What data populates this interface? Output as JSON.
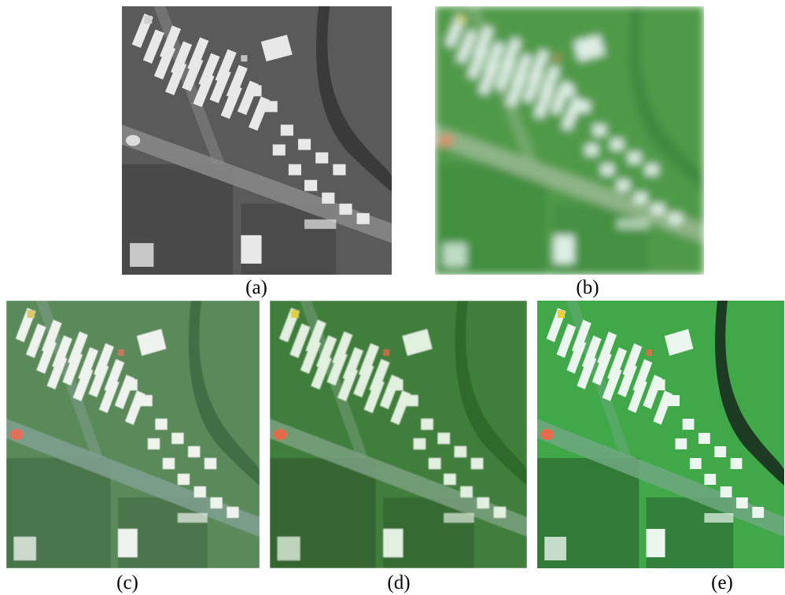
{
  "figure": {
    "panels": [
      {
        "id": "a",
        "caption": "(a)",
        "style": "grayscale",
        "colors": {
          "bg": "#5a5a5a",
          "building": "#e8e8e8",
          "road": "#8a8a8a",
          "river": "#3a3a3a",
          "dark": "#2a2a2a",
          "accent1": "#dcdcdc",
          "accent2": "#cfcfcf"
        },
        "blur": 0
      },
      {
        "id": "b",
        "caption": "(b)",
        "style": "color-blurred",
        "colors": {
          "bg": "#4f9a4a",
          "building": "#dfefe6",
          "road": "#9ab890",
          "river": "#3f8a40",
          "dark": "#2f7a32",
          "accent1": "#e08a6a",
          "accent2": "#d9d27a"
        },
        "blur": 5
      },
      {
        "id": "c",
        "caption": "(c)",
        "style": "color",
        "colors": {
          "bg": "#5a8a5a",
          "building": "#eef3ee",
          "road": "#7fa090",
          "river": "#3f6e45",
          "dark": "#2d4a30",
          "accent1": "#e0705a",
          "accent2": "#d8c96a"
        },
        "blur": 0.6
      },
      {
        "id": "d",
        "caption": "(d)",
        "style": "color",
        "colors": {
          "bg": "#3f7e3a",
          "building": "#e2f0e0",
          "road": "#7aa080",
          "river": "#2e6a2c",
          "dark": "#1f3a20",
          "accent1": "#e06a4a",
          "accent2": "#e0d040"
        },
        "blur": 0.8
      },
      {
        "id": "e",
        "caption": "(e)",
        "style": "color",
        "colors": {
          "bg": "#3fa84a",
          "building": "#eaf6ee",
          "road": "#6fa880",
          "river": "#1e3a22",
          "dark": "#14241a",
          "accent1": "#e86a4a",
          "accent2": "#e8d040"
        },
        "blur": 0.3
      }
    ]
  }
}
